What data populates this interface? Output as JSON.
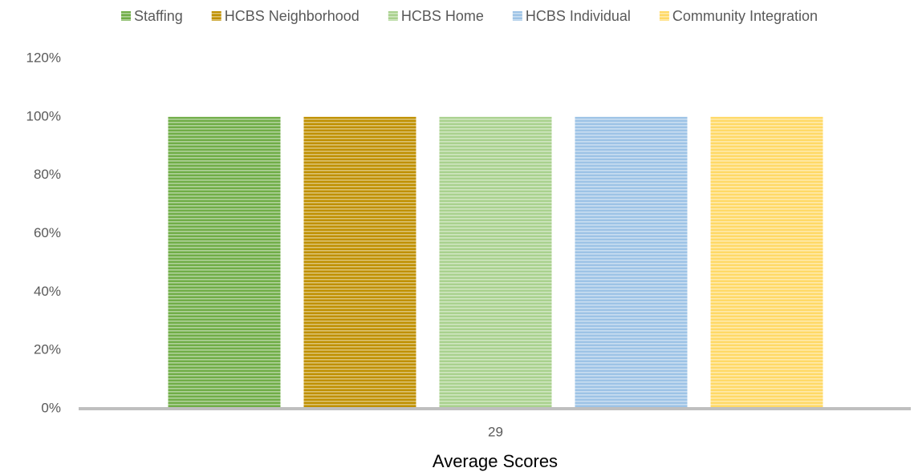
{
  "chart_data": {
    "type": "bar",
    "x_label": "Average Scores",
    "categories": [
      "29"
    ],
    "series": [
      {
        "name": "Staffing",
        "color": "#70ad47",
        "values": [
          100
        ]
      },
      {
        "name": "HCBS Neighborhood",
        "color": "#bf9000",
        "values": [
          100
        ]
      },
      {
        "name": "HCBS Home",
        "color": "#a9d18e",
        "values": [
          100
        ]
      },
      {
        "name": "HCBS Individual",
        "color": "#9dc3e6",
        "values": [
          100
        ]
      },
      {
        "name": "Community Integration",
        "color": "#ffd966",
        "values": [
          100
        ]
      }
    ],
    "ylim": [
      0,
      120
    ],
    "yticks": [
      {
        "value": 0,
        "label": "0%"
      },
      {
        "value": 20,
        "label": "20%"
      },
      {
        "value": 40,
        "label": "40%"
      },
      {
        "value": 60,
        "label": "60%"
      },
      {
        "value": 80,
        "label": "80%"
      },
      {
        "value": 100,
        "label": "100%"
      },
      {
        "value": 120,
        "label": "120%"
      }
    ],
    "grid": false,
    "legend": "top"
  }
}
